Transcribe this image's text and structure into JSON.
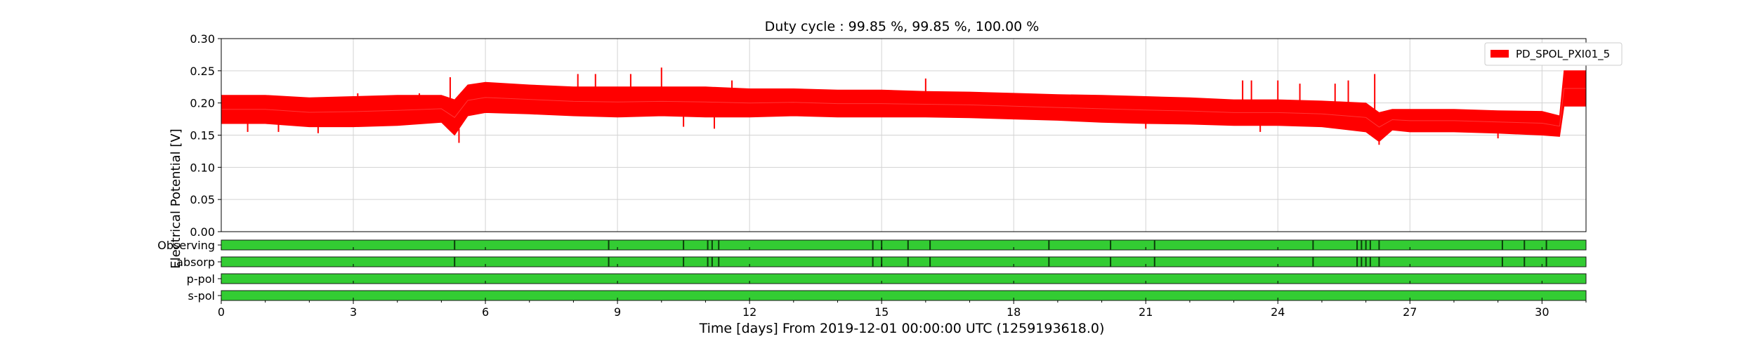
{
  "chart_data": {
    "type": "area",
    "title": "Duty cycle : 99.85 %, 99.85 %, 100.00 %",
    "xlabel": "Time [days] From 2019-12-01 00:00:00 UTC (1259193618.0)",
    "ylabel": "Electrical Potential [V]",
    "xlim": [
      0,
      31
    ],
    "ylim": [
      0,
      0.3
    ],
    "xticks": [
      0,
      3,
      6,
      9,
      12,
      15,
      18,
      21,
      24,
      27,
      30
    ],
    "xtick_labels": [
      "0",
      "3",
      "6",
      "9",
      "12",
      "15",
      "18",
      "21",
      "24",
      "27",
      "30"
    ],
    "yticks": [
      0,
      0.05,
      0.1,
      0.15,
      0.2,
      0.25,
      0.3
    ],
    "ytick_labels": [
      "0.00",
      "0.05",
      "0.10",
      "0.15",
      "0.20",
      "0.25",
      "0.30"
    ],
    "grid": true,
    "legend_position": "top-right",
    "series": [
      {
        "name": "PD_SPOL_PXI01_5",
        "color": "#ff0000",
        "x": [
          0,
          1,
          2,
          3,
          4,
          5,
          5.3,
          5.6,
          6,
          7,
          8,
          9,
          10,
          11,
          12,
          13,
          14,
          15,
          16,
          17,
          18,
          19,
          20,
          21,
          22,
          23,
          24,
          25,
          26,
          26.3,
          26.6,
          27,
          28,
          29,
          30,
          30.4,
          30.5,
          31
        ],
        "lower": [
          0.168,
          0.168,
          0.163,
          0.163,
          0.165,
          0.17,
          0.15,
          0.18,
          0.185,
          0.183,
          0.18,
          0.178,
          0.18,
          0.178,
          0.178,
          0.18,
          0.178,
          0.178,
          0.178,
          0.177,
          0.175,
          0.173,
          0.17,
          0.168,
          0.167,
          0.165,
          0.165,
          0.163,
          0.155,
          0.14,
          0.158,
          0.155,
          0.155,
          0.153,
          0.15,
          0.148,
          0.195,
          0.195
        ],
        "upper": [
          0.212,
          0.212,
          0.208,
          0.21,
          0.212,
          0.212,
          0.205,
          0.228,
          0.232,
          0.228,
          0.225,
          0.225,
          0.225,
          0.225,
          0.222,
          0.222,
          0.22,
          0.22,
          0.218,
          0.217,
          0.215,
          0.213,
          0.212,
          0.21,
          0.208,
          0.205,
          0.205,
          0.203,
          0.2,
          0.185,
          0.19,
          0.19,
          0.19,
          0.188,
          0.187,
          0.18,
          0.25,
          0.25
        ]
      }
    ],
    "spikes": [
      {
        "x": 0.6,
        "y": 0.155
      },
      {
        "x": 1.3,
        "y": 0.155
      },
      {
        "x": 2.2,
        "y": 0.153
      },
      {
        "x": 3.1,
        "y": 0.215
      },
      {
        "x": 4.5,
        "y": 0.215
      },
      {
        "x": 5.2,
        "y": 0.24
      },
      {
        "x": 5.4,
        "y": 0.138
      },
      {
        "x": 8.1,
        "y": 0.245
      },
      {
        "x": 8.5,
        "y": 0.245
      },
      {
        "x": 9.3,
        "y": 0.245
      },
      {
        "x": 10.0,
        "y": 0.255
      },
      {
        "x": 10.5,
        "y": 0.163
      },
      {
        "x": 11.2,
        "y": 0.16
      },
      {
        "x": 11.6,
        "y": 0.235
      },
      {
        "x": 16.0,
        "y": 0.238
      },
      {
        "x": 21.0,
        "y": 0.16
      },
      {
        "x": 23.2,
        "y": 0.235
      },
      {
        "x": 23.4,
        "y": 0.235
      },
      {
        "x": 23.6,
        "y": 0.155
      },
      {
        "x": 24.0,
        "y": 0.235
      },
      {
        "x": 24.5,
        "y": 0.23
      },
      {
        "x": 25.3,
        "y": 0.23
      },
      {
        "x": 25.6,
        "y": 0.235
      },
      {
        "x": 26.2,
        "y": 0.245
      },
      {
        "x": 26.3,
        "y": 0.135
      },
      {
        "x": 29.0,
        "y": 0.145
      }
    ],
    "segments": {
      "color_active": "#33cc33",
      "color_edge": "#000000",
      "rows": [
        {
          "label": "Observing",
          "gaps": [
            5.3,
            8.8,
            10.5,
            11.05,
            11.15,
            11.3,
            14.8,
            15.0,
            15.6,
            16.1,
            18.8,
            20.2,
            21.2,
            24.8,
            25.8,
            25.9,
            26.0,
            26.1,
            26.3,
            29.1,
            29.6,
            30.1
          ]
        },
        {
          "label": "absorp",
          "gaps": [
            5.3,
            8.8,
            10.5,
            11.05,
            11.15,
            11.3,
            14.8,
            15.0,
            15.6,
            16.1,
            18.8,
            20.2,
            21.2,
            24.8,
            25.8,
            25.9,
            26.0,
            26.1,
            26.3,
            29.1,
            29.6,
            30.1
          ]
        },
        {
          "label": "p-pol",
          "gaps": []
        },
        {
          "label": "s-pol",
          "gaps": []
        }
      ]
    }
  }
}
